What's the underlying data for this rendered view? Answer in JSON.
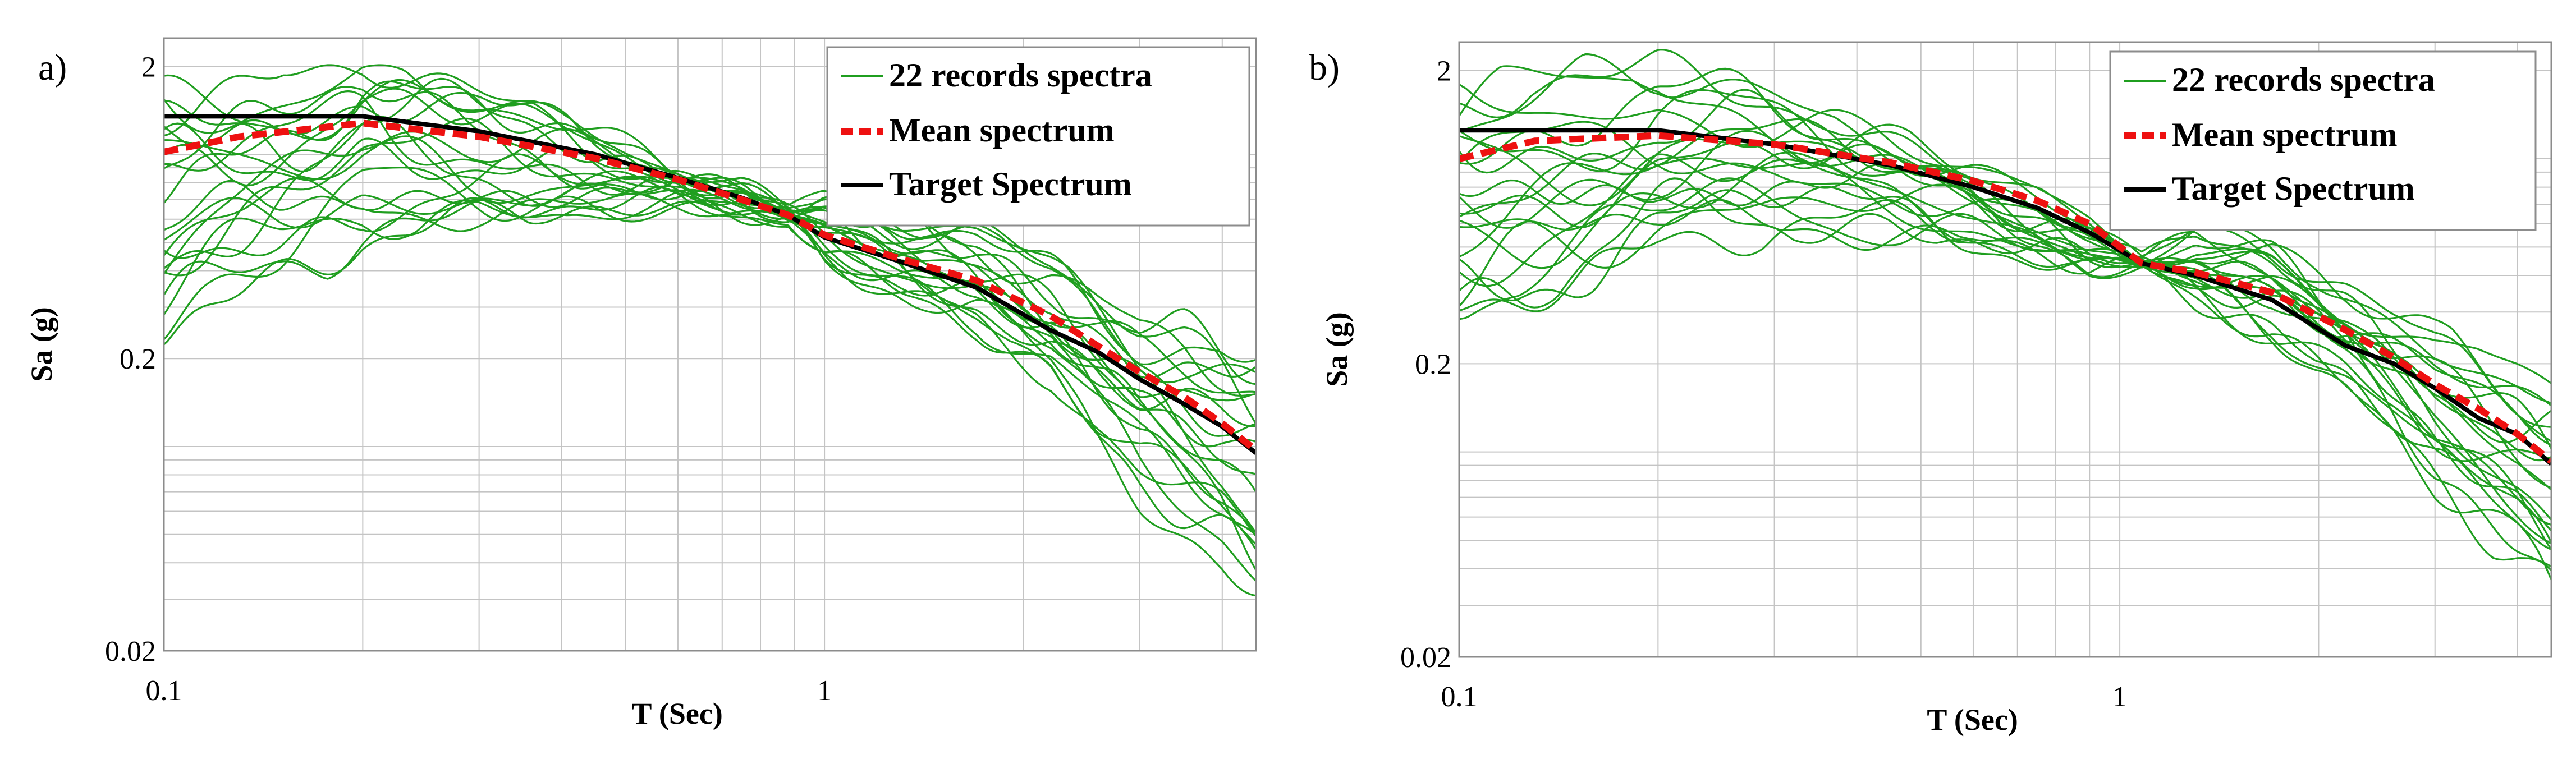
{
  "chart_data": [
    {
      "panel_label": "a)",
      "type": "line",
      "xscale": "log",
      "yscale": "log",
      "xlabel": "T (Sec)",
      "ylabel": "Sa (g)",
      "xlim": [
        0.1,
        4.5
      ],
      "ylim": [
        0.02,
        2.5
      ],
      "xticks": [
        0.1,
        1
      ],
      "xtick_labels": [
        "0.1",
        "1"
      ],
      "yticks": [
        0.02,
        0.2,
        2
      ],
      "ytick_labels": [
        "0.02",
        "0.2",
        "2"
      ],
      "grid": true,
      "legend_position": "top-right",
      "legend": [
        "22 records spectra",
        "Mean spectrum",
        "Target Spectrum"
      ],
      "records_count": 22,
      "anchor": {
        "T": 0.88,
        "Sa": 0.62
      },
      "target_spectrum": {
        "T": [
          0.1,
          0.2,
          0.3,
          0.45,
          0.6,
          0.75,
          0.88,
          1.0,
          1.3,
          1.7,
          2.2,
          2.6,
          3.0,
          3.5,
          4.0,
          4.5
        ],
        "Sa": [
          1.35,
          1.35,
          1.2,
          1.0,
          0.83,
          0.71,
          0.62,
          0.52,
          0.43,
          0.35,
          0.25,
          0.21,
          0.17,
          0.14,
          0.117,
          0.095
        ]
      },
      "mean_spectrum": {
        "T": [
          0.1,
          0.13,
          0.2,
          0.3,
          0.45,
          0.6,
          0.75,
          0.88,
          1.0,
          1.3,
          1.7,
          2.2,
          2.6,
          3.0,
          3.5,
          4.0,
          4.5
        ],
        "Sa": [
          1.02,
          1.15,
          1.28,
          1.15,
          0.97,
          0.82,
          0.7,
          0.62,
          0.53,
          0.44,
          0.37,
          0.28,
          0.22,
          0.18,
          0.148,
          0.12,
          0.097
        ]
      },
      "record_range": {
        "T": [
          0.1,
          0.15,
          0.2,
          0.3,
          0.45,
          0.6,
          0.75,
          0.88,
          1.0,
          1.3,
          1.7,
          2.2,
          2.6,
          3.0,
          3.5,
          4.0,
          4.5
        ],
        "Sa_min": [
          0.25,
          0.35,
          0.5,
          0.6,
          0.62,
          0.62,
          0.6,
          0.62,
          0.45,
          0.33,
          0.26,
          0.17,
          0.1,
          0.068,
          0.05,
          0.04,
          0.03
        ],
        "Sa_max": [
          1.75,
          2.0,
          2.2,
          1.6,
          1.15,
          0.95,
          0.78,
          0.62,
          0.72,
          0.62,
          0.55,
          0.42,
          0.33,
          0.28,
          0.27,
          0.24,
          0.21
        ]
      }
    },
    {
      "panel_label": "b)",
      "type": "line",
      "xscale": "log",
      "yscale": "log",
      "xlabel": "T (Sec)",
      "ylabel": "Sa (g)",
      "xlim": [
        0.1,
        4.5
      ],
      "ylim": [
        0.02,
        2.5
      ],
      "xticks": [
        0.1,
        1
      ],
      "xtick_labels": [
        "0.1",
        "1"
      ],
      "yticks": [
        0.02,
        0.2,
        2
      ],
      "ytick_labels": [
        "0.02",
        "0.2",
        "2"
      ],
      "grid": true,
      "legend_position": "top-right",
      "legend": [
        "22 records spectra",
        "Mean spectrum",
        "Target Spectrum"
      ],
      "records_count": 22,
      "anchor": {
        "T": 1.08,
        "Sa": 0.44
      },
      "target_spectrum": {
        "T": [
          0.1,
          0.2,
          0.3,
          0.45,
          0.6,
          0.75,
          0.9,
          1.08,
          1.3,
          1.7,
          2.2,
          2.6,
          3.0,
          3.5,
          4.0,
          4.5
        ],
        "Sa": [
          1.25,
          1.25,
          1.12,
          0.95,
          0.8,
          0.68,
          0.56,
          0.44,
          0.4,
          0.33,
          0.23,
          0.2,
          0.165,
          0.13,
          0.115,
          0.091
        ]
      },
      "mean_spectrum": {
        "T": [
          0.1,
          0.13,
          0.2,
          0.3,
          0.45,
          0.6,
          0.75,
          0.9,
          1.08,
          1.3,
          1.7,
          2.2,
          2.6,
          3.0,
          3.5,
          4.0,
          4.5
        ],
        "Sa": [
          1.0,
          1.15,
          1.2,
          1.12,
          0.97,
          0.84,
          0.72,
          0.6,
          0.44,
          0.41,
          0.35,
          0.26,
          0.21,
          0.17,
          0.14,
          0.115,
          0.093
        ]
      },
      "record_range": {
        "T": [
          0.1,
          0.15,
          0.2,
          0.3,
          0.45,
          0.6,
          0.75,
          0.9,
          1.08,
          1.3,
          1.7,
          2.2,
          2.6,
          3.0,
          3.5,
          4.0,
          4.5
        ],
        "Sa_min": [
          0.3,
          0.38,
          0.48,
          0.56,
          0.55,
          0.5,
          0.44,
          0.4,
          0.44,
          0.34,
          0.25,
          0.16,
          0.11,
          0.075,
          0.055,
          0.042,
          0.032
        ],
        "Sa_max": [
          1.85,
          2.0,
          2.05,
          1.6,
          1.2,
          0.96,
          0.78,
          0.62,
          0.44,
          0.56,
          0.5,
          0.38,
          0.3,
          0.25,
          0.22,
          0.2,
          0.18
        ]
      }
    }
  ],
  "colors": {
    "records": "#1f9e1f",
    "mean": "#ee1111",
    "target": "#000000",
    "grid": "#c4c4c4",
    "frame": "#8c8c8c"
  }
}
